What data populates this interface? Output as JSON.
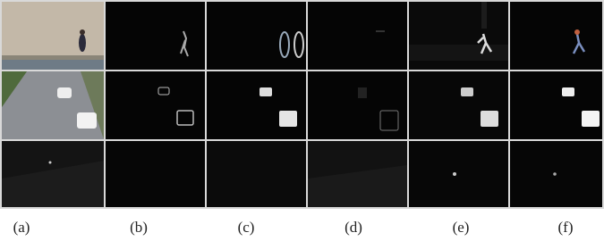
{
  "figure": {
    "panel_labels": [
      "(a)",
      "(b)",
      "(c)",
      "(d)",
      "(e)",
      "(f)"
    ]
  }
}
